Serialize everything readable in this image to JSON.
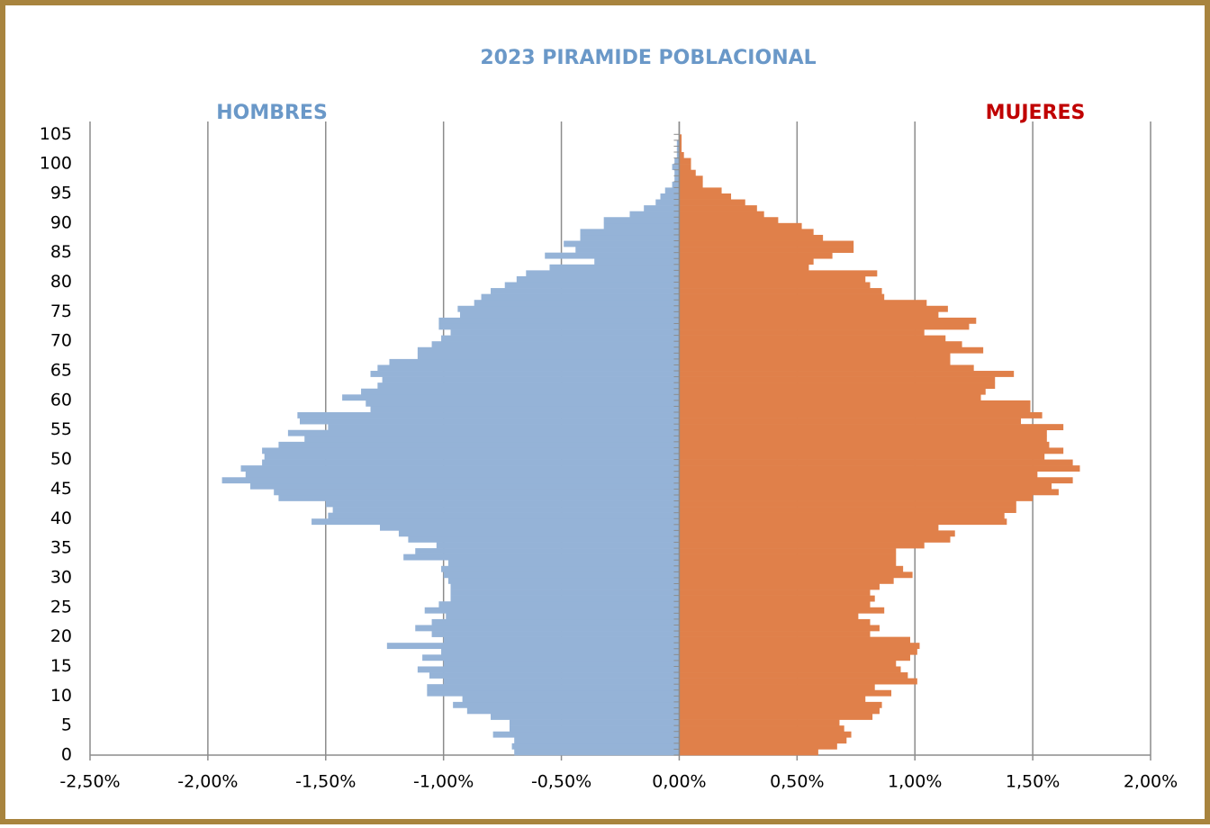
{
  "chart_data": {
    "type": "pyramid",
    "title": "2023 PIRAMIDE POBLACIONAL",
    "categories": [
      0,
      null,
      null,
      null,
      null,
      5,
      null,
      null,
      null,
      null,
      10,
      null,
      null,
      null,
      null,
      15,
      null,
      null,
      null,
      null,
      20,
      null,
      null,
      null,
      null,
      25,
      null,
      null,
      null,
      null,
      30,
      null,
      null,
      null,
      null,
      35,
      null,
      null,
      null,
      null,
      40,
      null,
      null,
      null,
      null,
      45,
      null,
      null,
      null,
      null,
      50,
      null,
      null,
      null,
      null,
      55,
      null,
      null,
      null,
      null,
      60,
      null,
      null,
      null,
      null,
      65,
      null,
      null,
      null,
      null,
      70,
      null,
      null,
      null,
      null,
      75,
      null,
      null,
      null,
      null,
      80,
      null,
      null,
      null,
      null,
      85,
      null,
      null,
      null,
      null,
      90,
      null,
      null,
      null,
      null,
      95,
      null,
      null,
      null,
      null,
      100,
      null,
      null,
      null,
      null,
      105
    ],
    "series": [
      {
        "name": "HOMBRES",
        "color": "#95b3d7",
        "label_color": "#6a98c8",
        "values": [
          -0.7,
          -0.71,
          -0.7,
          -0.79,
          -0.72,
          -0.72,
          -0.8,
          -0.9,
          -0.96,
          -0.92,
          -1.07,
          -1.07,
          -1.0,
          -1.06,
          -1.11,
          -1.0,
          -1.09,
          -1.01,
          -1.24,
          -1.0,
          -1.05,
          -1.12,
          -1.05,
          -0.99,
          -1.08,
          -1.02,
          -0.97,
          -0.97,
          -0.97,
          -0.98,
          -1.0,
          -1.01,
          -0.98,
          -1.17,
          -1.12,
          -1.03,
          -1.15,
          -1.19,
          -1.27,
          -1.56,
          -1.49,
          -1.47,
          -1.5,
          -1.7,
          -1.72,
          -1.82,
          -1.94,
          -1.84,
          -1.86,
          -1.77,
          -1.76,
          -1.77,
          -1.7,
          -1.59,
          -1.66,
          -1.49,
          -1.61,
          -1.62,
          -1.31,
          -1.33,
          -1.43,
          -1.35,
          -1.28,
          -1.26,
          -1.31,
          -1.28,
          -1.23,
          -1.11,
          -1.11,
          -1.05,
          -1.01,
          -0.97,
          -1.02,
          -1.02,
          -0.93,
          -0.94,
          -0.87,
          -0.84,
          -0.8,
          -0.74,
          -0.69,
          -0.65,
          -0.55,
          -0.36,
          -0.57,
          -0.44,
          -0.49,
          -0.42,
          -0.42,
          -0.32,
          -0.32,
          -0.21,
          -0.15,
          -0.1,
          -0.08,
          -0.06,
          -0.03,
          -0.02,
          -0.02,
          -0.03,
          -0.02,
          -0.01,
          -0.01,
          -0.01,
          0,
          0
        ]
      },
      {
        "name": "MUJERES",
        "color": "#e0804a",
        "label_color": "#c00000",
        "values": [
          0.59,
          0.67,
          0.71,
          0.73,
          0.7,
          0.68,
          0.82,
          0.85,
          0.86,
          0.79,
          0.9,
          0.83,
          1.01,
          0.97,
          0.94,
          0.92,
          0.98,
          1.01,
          1.02,
          0.98,
          0.81,
          0.85,
          0.81,
          0.76,
          0.87,
          0.81,
          0.83,
          0.81,
          0.85,
          0.91,
          0.99,
          0.95,
          0.92,
          0.92,
          0.92,
          1.04,
          1.15,
          1.17,
          1.1,
          1.39,
          1.38,
          1.43,
          1.43,
          1.5,
          1.61,
          1.58,
          1.67,
          1.52,
          1.7,
          1.67,
          1.55,
          1.63,
          1.57,
          1.56,
          1.56,
          1.63,
          1.45,
          1.54,
          1.49,
          1.49,
          1.28,
          1.3,
          1.34,
          1.34,
          1.42,
          1.25,
          1.15,
          1.15,
          1.29,
          1.2,
          1.13,
          1.04,
          1.23,
          1.26,
          1.1,
          1.14,
          1.05,
          0.87,
          0.86,
          0.81,
          0.79,
          0.84,
          0.55,
          0.57,
          0.65,
          0.74,
          0.74,
          0.61,
          0.57,
          0.52,
          0.42,
          0.36,
          0.33,
          0.28,
          0.22,
          0.18,
          0.1,
          0.1,
          0.07,
          0.05,
          0.05,
          0.02,
          0.01,
          0.01,
          0.01,
          0
        ]
      }
    ],
    "xlim": [
      -2.5,
      2.0
    ],
    "xticks": [
      {
        "value": -2.5,
        "label": "-2,50%"
      },
      {
        "value": -2.0,
        "label": "-2,00%"
      },
      {
        "value": -1.5,
        "label": "-1,50%"
      },
      {
        "value": -1.0,
        "label": "-1,00%"
      },
      {
        "value": -0.5,
        "label": "-0,50%"
      },
      {
        "value": 0,
        "label": "0,00%"
      },
      {
        "value": 0.5,
        "label": "0,50%"
      },
      {
        "value": 1.0,
        "label": "1,00%"
      },
      {
        "value": 1.5,
        "label": "1,50%"
      },
      {
        "value": 2.0,
        "label": "2,00%"
      }
    ],
    "grid": true
  }
}
